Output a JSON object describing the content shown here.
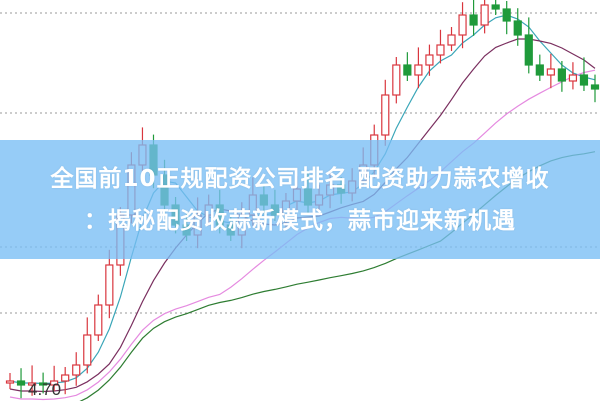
{
  "headline": {
    "line1": "全国前10正规配资公司排名 配资助力蒜农增收",
    "line2": "：揭秘配资收蒜新模式，蒜市迎来新机遇"
  },
  "chart_data": {
    "type": "candlestick",
    "title": "",
    "low_label": "4.70",
    "grid": "dotted horizontal",
    "up_color": "#d9363e",
    "down_color": "#1f9a3a",
    "ma_colors": [
      "#3aa6b8",
      "#7a2f5f",
      "#e58ae0",
      "#2e7d32"
    ],
    "closes": [
      4.72,
      4.7,
      4.71,
      4.7,
      4.72,
      4.75,
      4.8,
      4.95,
      5.1,
      5.3,
      5.55,
      5.8,
      5.9,
      5.75,
      5.6,
      5.5,
      5.45,
      5.55,
      5.6,
      5.5,
      5.45,
      5.55,
      5.65,
      5.6,
      5.55,
      5.62,
      5.68,
      5.6,
      5.65,
      5.7,
      5.66,
      5.72,
      5.8,
      5.95,
      6.15,
      6.3,
      6.25,
      6.3,
      6.35,
      6.4,
      6.45,
      6.55,
      6.5,
      6.6,
      6.58,
      6.52,
      6.45,
      6.3,
      6.25,
      6.28,
      6.22,
      6.25,
      6.2,
      6.18
    ],
    "ylim": [
      4.7,
      6.625
    ]
  }
}
